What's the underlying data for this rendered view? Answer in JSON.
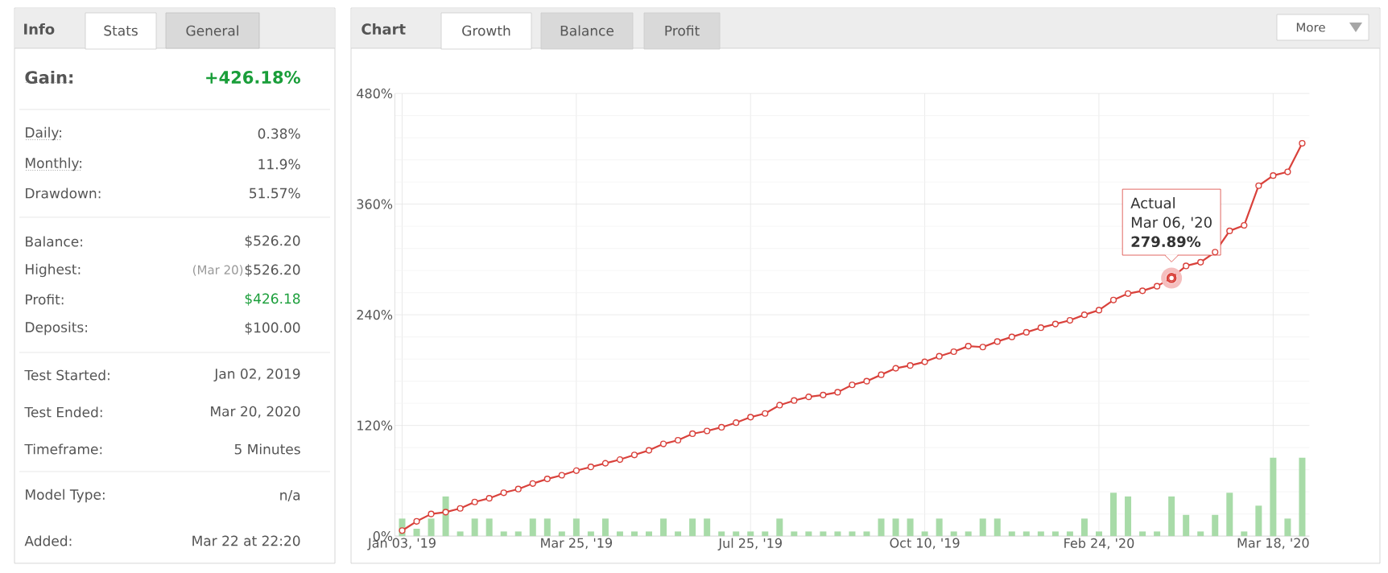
{
  "chart_data": [
    {
      "type": "other",
      "title": "Info",
      "annotations": [
        "Stats",
        "General",
        "Gain:",
        "+426.18%",
        "Daily:",
        "0.38%",
        "Monthly:",
        "11.9%",
        "Drawdown:",
        "51.57%",
        "Balance:",
        "$526.20",
        "Highest:",
        "(Mar 20)",
        "$526.20",
        "Profit:",
        "$426.18",
        "Deposits:",
        "$100.00",
        "Test Started:",
        "Jan 02, 2019",
        "Test Ended:",
        "Mar 20, 2020",
        "Timeframe:",
        "5 Minutes",
        "Model Type:",
        "n/a",
        "Added:",
        "Mar 22 at 22:20"
      ]
    },
    {
      "type": "line",
      "title": "Chart",
      "grid": true,
      "marker": "circle",
      "line_style": "solid",
      "categories": [
        "Jan 03, '19",
        null,
        null,
        null,
        null,
        null,
        null,
        null,
        null,
        null,
        null,
        null,
        "Mar 25, '19",
        null,
        null,
        null,
        null,
        null,
        null,
        null,
        null,
        null,
        null,
        null,
        "Jul 25, '19",
        null,
        null,
        null,
        null,
        null,
        null,
        null,
        null,
        null,
        null,
        null,
        "Oct 10, '19",
        null,
        null,
        null,
        null,
        null,
        null,
        null,
        null,
        null,
        null,
        null,
        "Feb 24, '20",
        null,
        null,
        null,
        null,
        null,
        null,
        null,
        null,
        null,
        null,
        null,
        "Mar 18, '20",
        null,
        null
      ],
      "ylim": [
        0,
        480
      ],
      "yticks": [
        {
          "value": 0,
          "label": "0%"
        },
        {
          "value": 120,
          "label": "120%"
        },
        {
          "value": 240,
          "label": "240%"
        },
        {
          "value": 360,
          "label": "360%"
        },
        {
          "value": 480,
          "label": "480%"
        }
      ],
      "series": [
        {
          "type": "bar",
          "color": "#a8dba8",
          "values": [
            19,
            8,
            19,
            43,
            5,
            19,
            19,
            5,
            5,
            19,
            19,
            5,
            19,
            5,
            19,
            5,
            5,
            5,
            19,
            5,
            19,
            19,
            5,
            5,
            5,
            5,
            19,
            5,
            5,
            5,
            5,
            5,
            5,
            19,
            19,
            19,
            5,
            19,
            5,
            5,
            19,
            19,
            5,
            5,
            5,
            5,
            5,
            19,
            5,
            47,
            43,
            5,
            5,
            43,
            23,
            5,
            23,
            47,
            5,
            33,
            85,
            19,
            85
          ]
        },
        {
          "type": "line",
          "color": "#d9413b",
          "values": [
            6,
            16,
            24,
            26,
            30,
            37,
            41,
            47,
            51,
            57,
            62,
            66,
            71,
            75,
            79,
            83,
            88,
            93,
            100,
            104,
            111,
            114,
            118,
            123,
            129,
            133,
            142,
            147,
            151,
            153,
            156,
            164,
            168,
            175,
            182,
            185,
            189,
            195,
            200,
            206,
            205,
            211,
            216,
            221,
            226,
            230,
            234,
            240,
            245,
            256,
            263,
            266,
            271,
            279.89,
            293,
            297,
            308,
            331,
            337,
            380,
            391,
            395,
            426
          ]
        }
      ],
      "annotations": [
        "Growth",
        "Balance",
        "Profit",
        "More",
        "Actual",
        "Mar 06, '20",
        {
          "text": "279.89%",
          "y": 279.89
        }
      ]
    }
  ]
}
